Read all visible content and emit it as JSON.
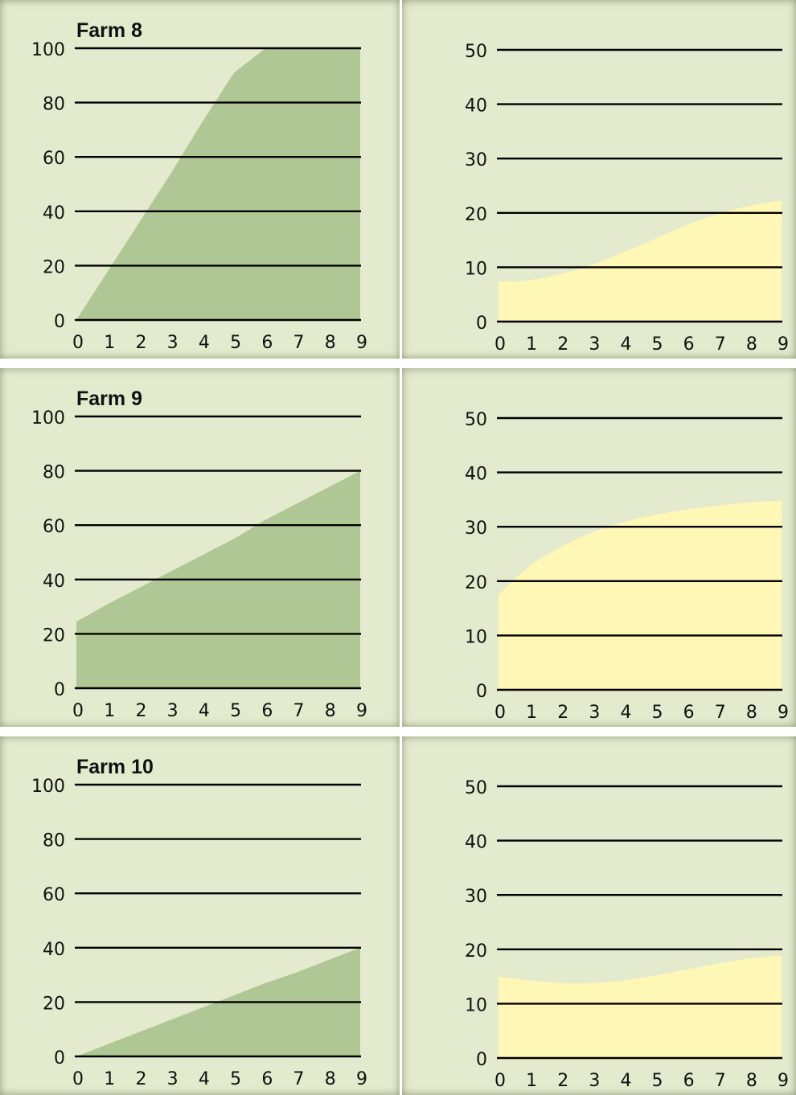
{
  "colors": {
    "background": "#e4eacd",
    "green_area": "#afc795",
    "yellow_area": "#fff7b5",
    "gridline": "#000000"
  },
  "chart_data": [
    {
      "type": "area",
      "title": "Farm 8",
      "x": [
        0,
        1,
        2,
        3,
        4,
        5,
        6,
        7,
        8,
        9
      ],
      "values": [
        0,
        18,
        36,
        54,
        73,
        91,
        100,
        100,
        100,
        100
      ],
      "ylim": [
        0,
        100
      ],
      "yticks": [
        0,
        20,
        40,
        60,
        80,
        100
      ],
      "grid": true,
      "color": "#afc795"
    },
    {
      "type": "area",
      "title": "",
      "x": [
        0,
        1,
        2,
        3,
        4,
        5,
        6,
        7,
        8,
        9
      ],
      "values": [
        7.3,
        7.6,
        8.8,
        10.5,
        12.8,
        15.3,
        17.8,
        19.8,
        21.3,
        22.3
      ],
      "ylim": [
        0,
        50
      ],
      "yticks": [
        0,
        10,
        20,
        30,
        40,
        50
      ],
      "grid": true,
      "color": "#fff7b5"
    },
    {
      "type": "area",
      "title": "Farm 9",
      "x": [
        0,
        1,
        2,
        3,
        4,
        5,
        6,
        7,
        8,
        9
      ],
      "values": [
        24.5,
        31,
        37,
        43,
        49,
        55,
        62,
        68,
        74,
        80
      ],
      "ylim": [
        0,
        100
      ],
      "yticks": [
        0,
        20,
        40,
        60,
        80,
        100
      ],
      "grid": true,
      "color": "#afc795"
    },
    {
      "type": "area",
      "title": "",
      "x": [
        0,
        1,
        2,
        3,
        4,
        5,
        6,
        7,
        8,
        9
      ],
      "values": [
        17.5,
        22.8,
        26.3,
        29.0,
        30.9,
        32.2,
        33.2,
        33.9,
        34.5,
        34.8
      ],
      "ylim": [
        0,
        50
      ],
      "yticks": [
        0,
        10,
        20,
        30,
        40,
        50
      ],
      "grid": true,
      "color": "#fff7b5"
    },
    {
      "type": "area",
      "title": "Farm 10",
      "x": [
        0,
        1,
        2,
        3,
        4,
        5,
        6,
        7,
        8,
        9
      ],
      "values": [
        0,
        4.5,
        9,
        13.5,
        18,
        22.5,
        27,
        31,
        35.5,
        40
      ],
      "ylim": [
        0,
        100
      ],
      "yticks": [
        0,
        20,
        40,
        60,
        80,
        100
      ],
      "grid": true,
      "color": "#afc795"
    },
    {
      "type": "area",
      "title": "",
      "x": [
        0,
        1,
        2,
        3,
        4,
        5,
        6,
        7,
        8,
        9
      ],
      "values": [
        15.0,
        14.3,
        13.8,
        13.8,
        14.3,
        15.2,
        16.3,
        17.4,
        18.3,
        18.9
      ],
      "ylim": [
        0,
        50
      ],
      "yticks": [
        0,
        10,
        20,
        30,
        40,
        50
      ],
      "grid": true,
      "color": "#fff7b5"
    }
  ]
}
